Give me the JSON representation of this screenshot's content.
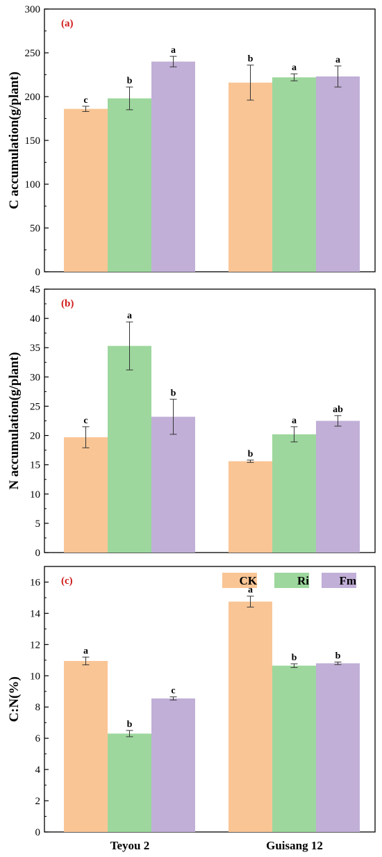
{
  "chart_data": [
    {
      "type": "bar",
      "panel_label": "(a)",
      "ylabel": "C accumulation(g/plant)",
      "ylim": [
        0,
        300
      ],
      "yticks": [
        0,
        50,
        100,
        150,
        200,
        250,
        300
      ],
      "categories": [
        "Teyou 2",
        "Guisang 12"
      ],
      "series": [
        {
          "name": "CK",
          "values": [
            186,
            216
          ],
          "errors": [
            3,
            20
          ],
          "letters": [
            "c",
            "b"
          ]
        },
        {
          "name": "Ri",
          "values": [
            198,
            222
          ],
          "errors": [
            13,
            4
          ],
          "letters": [
            "b",
            "a"
          ]
        },
        {
          "name": "Fm",
          "values": [
            240,
            223
          ],
          "errors": [
            6,
            12
          ],
          "letters": [
            "a",
            "a"
          ]
        }
      ]
    },
    {
      "type": "bar",
      "panel_label": "(b)",
      "ylabel": "N accumulation(g/plant)",
      "ylim": [
        0,
        45
      ],
      "yticks": [
        0,
        5,
        10,
        15,
        20,
        25,
        30,
        35,
        40,
        45
      ],
      "categories": [
        "Teyou 2",
        "Guisang 12"
      ],
      "series": [
        {
          "name": "CK",
          "values": [
            19.7,
            15.6
          ],
          "errors": [
            1.8,
            0.2
          ],
          "letters": [
            "c",
            "b"
          ]
        },
        {
          "name": "Ri",
          "values": [
            35.3,
            20.2
          ],
          "errors": [
            4.1,
            1.3
          ],
          "letters": [
            "a",
            "a"
          ]
        },
        {
          "name": "Fm",
          "values": [
            23.2,
            22.5
          ],
          "errors": [
            3.0,
            0.9
          ],
          "letters": [
            "b",
            "ab"
          ]
        }
      ]
    },
    {
      "type": "bar",
      "panel_label": "(c)",
      "ylabel": "C:N(%)",
      "ylim": [
        0,
        17
      ],
      "yticks": [
        0,
        2,
        4,
        6,
        8,
        10,
        12,
        14,
        16
      ],
      "categories": [
        "Teyou 2",
        "Guisang 12"
      ],
      "legend": {
        "entries": [
          "CK",
          "Ri",
          "Fm"
        ],
        "position": "top-right"
      },
      "series": [
        {
          "name": "CK",
          "values": [
            10.95,
            14.75
          ],
          "errors": [
            0.25,
            0.35
          ],
          "letters": [
            "a",
            "a"
          ]
        },
        {
          "name": "Ri",
          "values": [
            6.3,
            10.65
          ],
          "errors": [
            0.2,
            0.12
          ],
          "letters": [
            "b",
            "b"
          ]
        },
        {
          "name": "Fm",
          "values": [
            8.55,
            10.8
          ],
          "errors": [
            0.1,
            0.08
          ],
          "letters": [
            "c",
            "b"
          ]
        }
      ]
    }
  ],
  "colors": {
    "CK": "#f9c595",
    "Ri": "#9dd79d",
    "Fm": "#c1afd7",
    "panel_label": "#d11a1a"
  }
}
